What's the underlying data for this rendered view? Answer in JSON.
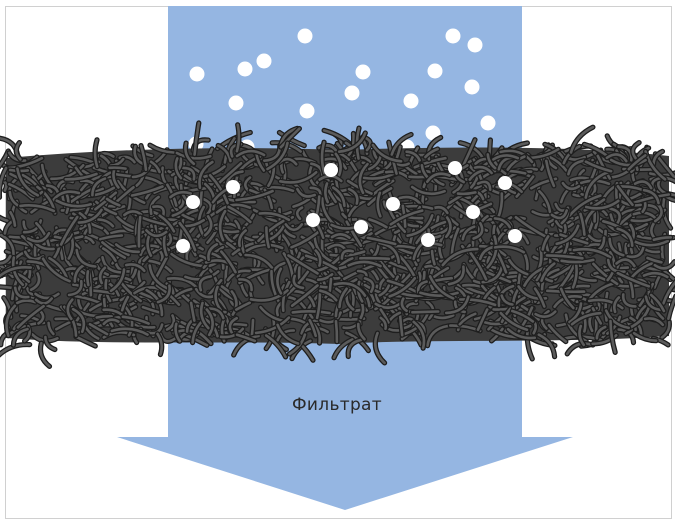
{
  "diagram": {
    "label": "Фильтрат"
  },
  "colors": {
    "flow": "#95b6e2",
    "fiber_fill": "#5b5b5b",
    "fiber_stroke": "#1e1e1e",
    "particle": "#ffffff",
    "frame": "#d0d0d0"
  }
}
